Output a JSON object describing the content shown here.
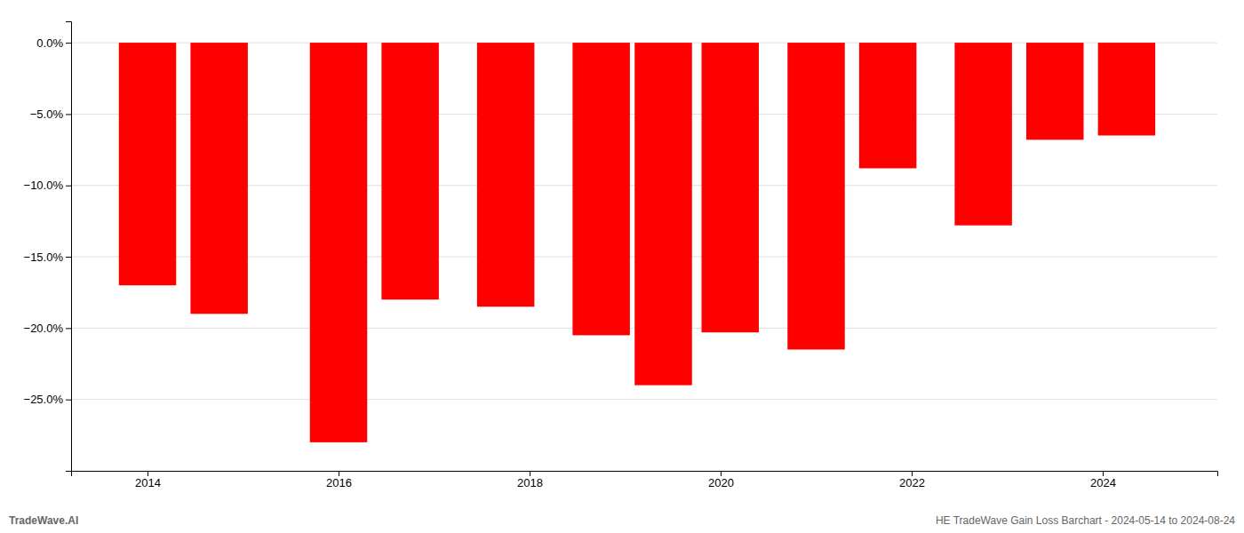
{
  "chart_data": {
    "type": "bar",
    "x": [
      2014,
      2014.75,
      2016,
      2016.75,
      2017.75,
      2018.75,
      2019.4,
      2020.1,
      2021,
      2021.75,
      2022.75,
      2023.5,
      2024.25
    ],
    "values": [
      -17.0,
      -19.0,
      -28.0,
      -18.0,
      -18.5,
      -20.5,
      -24.0,
      -20.3,
      -21.5,
      -8.8,
      -12.8,
      -6.8,
      -6.5
    ],
    "color": "#ff0000",
    "xlim": [
      2013.2,
      2025.2
    ],
    "xticks": [
      2014,
      2016,
      2018,
      2020,
      2022,
      2024
    ],
    "ylim": [
      -30,
      1.5
    ],
    "yticks": [
      {
        "value": 0.0,
        "label": "0.0%"
      },
      {
        "value": -5.0,
        "label": "−5.0%"
      },
      {
        "value": -10.0,
        "label": "−10.0%"
      },
      {
        "value": -15.0,
        "label": "−15.0%"
      },
      {
        "value": -20.0,
        "label": "−20.0%"
      },
      {
        "value": -25.0,
        "label": "−25.0%"
      }
    ],
    "grid": true,
    "annotations": [
      "TradeWave.AI",
      "HE TradeWave Gain Loss Barchart - 2024-05-14 to 2024-08-24"
    ]
  }
}
